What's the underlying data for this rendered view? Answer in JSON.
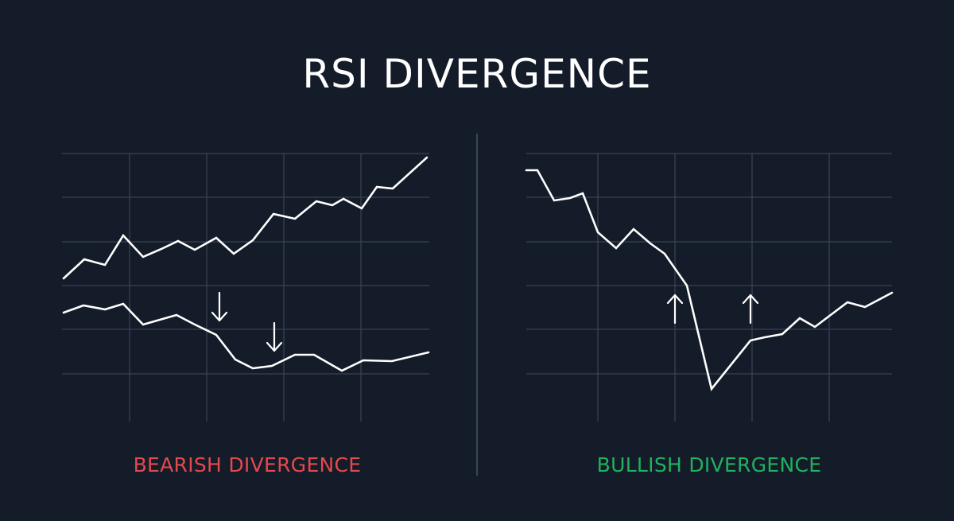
{
  "title": "RSI DIVERGENCE",
  "colors": {
    "background": "#141b29",
    "grid": "#394354",
    "line": "#ffffff",
    "bearish": "#e5484d",
    "bullish": "#1fb25f"
  },
  "panels": [
    {
      "id": "bearish",
      "caption": "BEARISH DIVERGENCE",
      "caption_color": "#e5484d",
      "arrow_direction": "down",
      "arrow_icon": "down-arrow-icon"
    },
    {
      "id": "bullish",
      "caption": "BULLISH DIVERGENCE",
      "caption_color": "#1fb25f",
      "arrow_direction": "up",
      "arrow_icon": "up-arrow-icon"
    }
  ]
}
